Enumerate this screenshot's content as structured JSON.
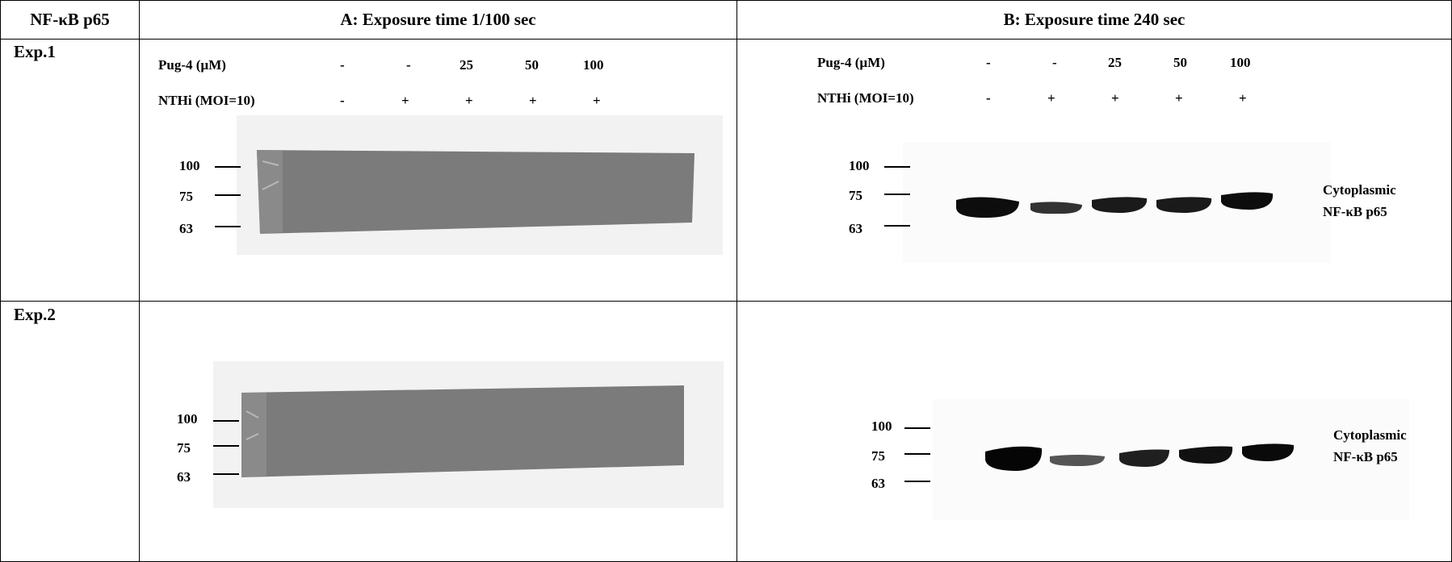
{
  "header": {
    "corner": "NF-κB p65",
    "colA": "A: Exposure time 1/100 sec",
    "colB": "B: Exposure time 240 sec"
  },
  "rows": [
    {
      "label": "Exp.1"
    },
    {
      "label": "Exp.2"
    }
  ],
  "conditions": {
    "pug_label": "Pug-4 (µM)",
    "pug_values": [
      "-",
      "-",
      "25",
      "50",
      "100"
    ],
    "nthi_label": "NTHi (MOI=10)",
    "nthi_values": [
      "-",
      "+",
      "+",
      "+",
      "+"
    ]
  },
  "markers": [
    "100",
    "75",
    "63"
  ],
  "band_label_line1": "Cytoplasmic",
  "band_label_line2": "NF-κB p65",
  "colors": {
    "grid": "#000000",
    "blot_dark": "#7a7a7a",
    "blot_light": "#f4f4f4",
    "band": "#111111"
  }
}
